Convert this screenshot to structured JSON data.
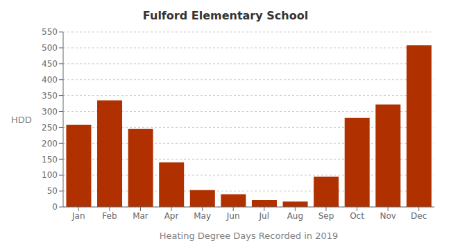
{
  "chart_data": {
    "type": "bar",
    "title": "Fulford Elementary School",
    "xlabel": "Heating Degree Days Recorded in 2019",
    "ylabel": "HDD",
    "categories": [
      "Jan",
      "Feb",
      "Mar",
      "Apr",
      "May",
      "Jun",
      "Jul",
      "Aug",
      "Sep",
      "Oct",
      "Nov",
      "Dec"
    ],
    "values": [
      258,
      335,
      245,
      140,
      53,
      40,
      22,
      17,
      95,
      280,
      322,
      508
    ],
    "color": "#b03000",
    "ylim": [
      0,
      550
    ],
    "yticks": [
      0,
      50,
      100,
      150,
      200,
      250,
      300,
      350,
      400,
      450,
      500,
      550
    ],
    "grid": true
  }
}
